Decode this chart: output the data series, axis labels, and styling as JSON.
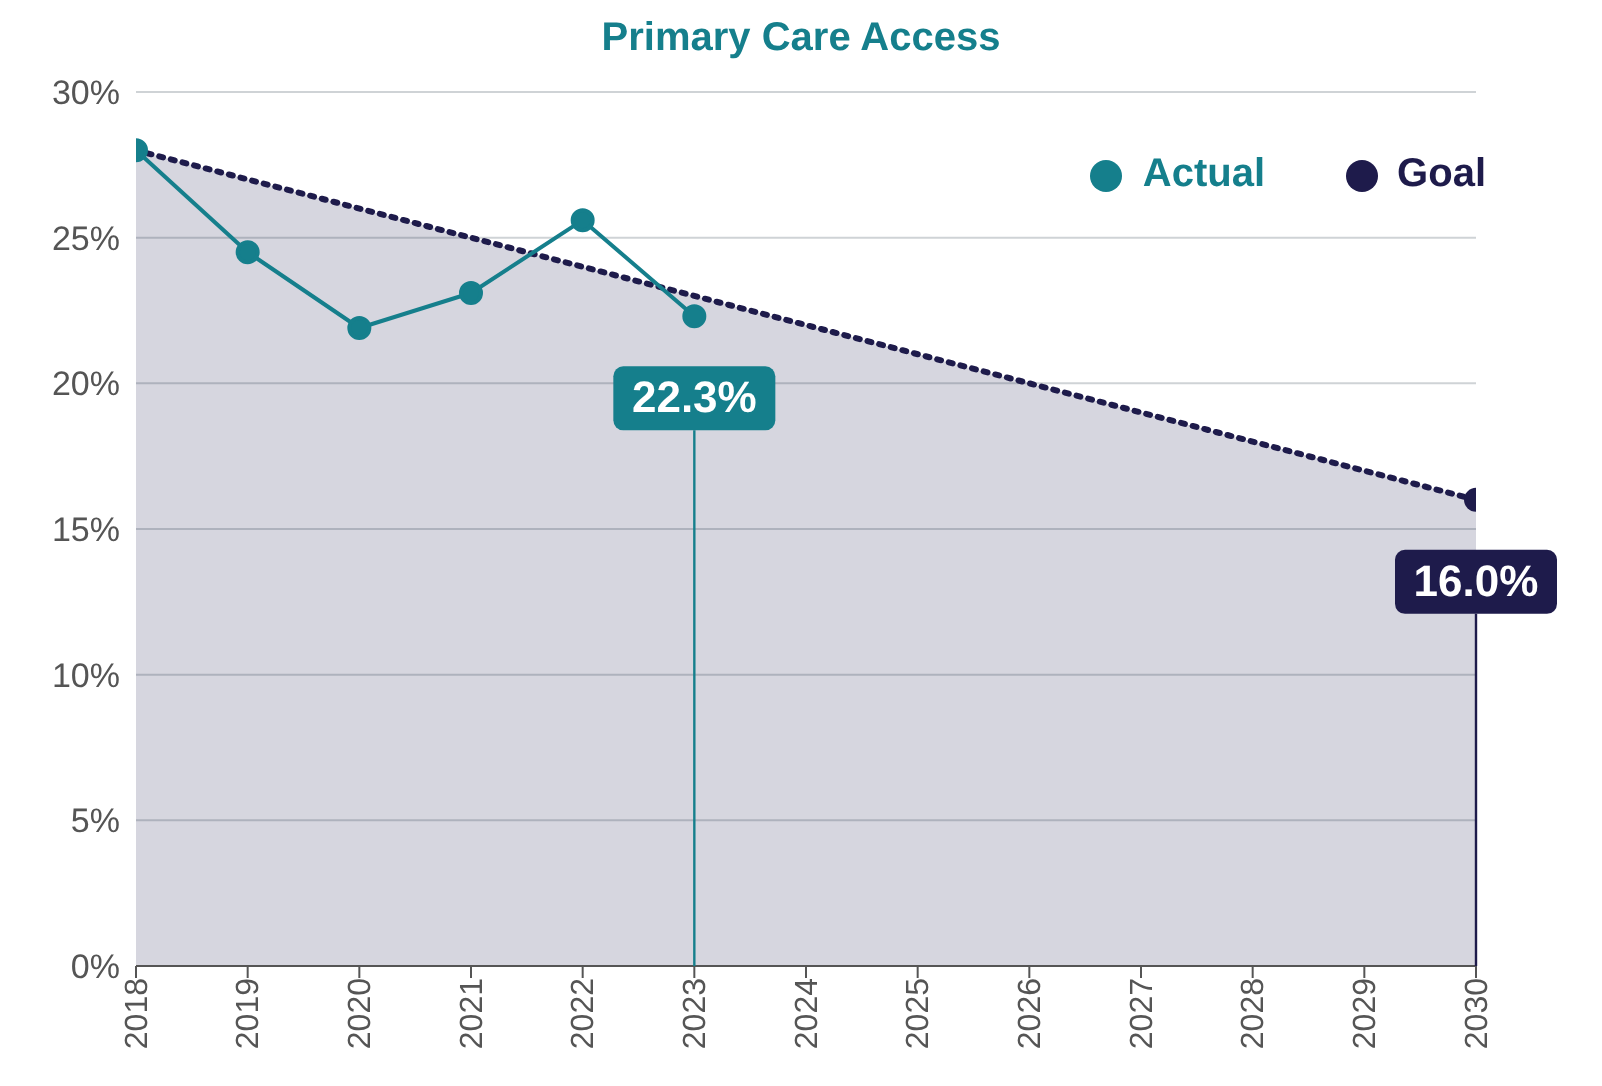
{
  "chart_data": {
    "type": "line",
    "title": "Primary Care Access",
    "xlim": [
      2018,
      2030
    ],
    "xticks": [
      2018,
      2019,
      2020,
      2021,
      2022,
      2023,
      2024,
      2025,
      2026,
      2027,
      2028,
      2029,
      2030
    ],
    "ylim": [
      0,
      30
    ],
    "yticks": [
      {
        "value": 0,
        "label": "0%"
      },
      {
        "value": 5,
        "label": "5%"
      },
      {
        "value": 10,
        "label": "10%"
      },
      {
        "value": 15,
        "label": "15%"
      },
      {
        "value": 20,
        "label": "20%"
      },
      {
        "value": 25,
        "label": "25%"
      },
      {
        "value": 30,
        "label": "30%"
      }
    ],
    "grid": "y",
    "legend": "top right",
    "series": [
      {
        "type": "area",
        "color": "#1e1b4b",
        "line_style": "dotted",
        "marker": "none",
        "x": [
          2018,
          2030
        ],
        "values": [
          28.0,
          16.0
        ]
      },
      {
        "name": "Actual",
        "color": "#157f8c",
        "marker": "circle",
        "x": [
          2018,
          2019,
          2020,
          2021,
          2022,
          2023
        ],
        "values": [
          28.0,
          24.5,
          21.9,
          23.1,
          25.6,
          22.3
        ],
        "value_labels": [
          null,
          null,
          null,
          null,
          null,
          "22.3%"
        ]
      },
      {
        "type": "scatter",
        "name": "Goal",
        "color": "#1e1b4b",
        "x": [
          2030
        ],
        "values": [
          16.0
        ],
        "value_labels": [
          "16.0%"
        ]
      }
    ]
  }
}
